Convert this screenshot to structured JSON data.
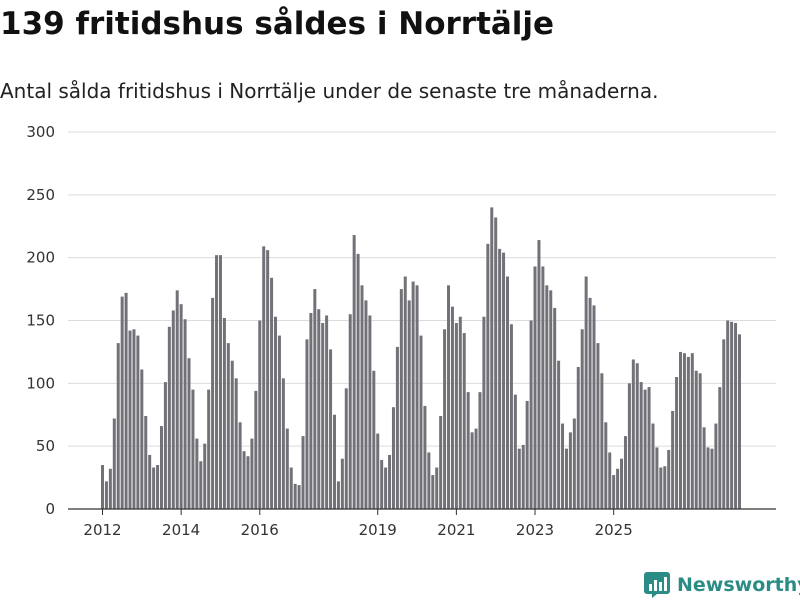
{
  "title": "139 fritidshus såldes i Norrtälje",
  "subtitle": "Antal sålda fritidshus i Norrtälje under de senaste tre månaderna.",
  "brand": {
    "name": "Newsworthy",
    "icon": "newsworthy-logo-icon"
  },
  "colors": {
    "bar": "#727178",
    "highlight": "#21988a",
    "grid": "#dcdcdc",
    "axis": "#333333",
    "brand": "#2a8c85"
  },
  "chart_data": {
    "type": "bar",
    "title": "139 fritidshus såldes i Norrtälje",
    "subtitle": "Antal sålda fritidshus i Norrtälje under de senaste tre månaderna.",
    "xlabel": "",
    "ylabel": "",
    "ylim": [
      0,
      300
    ],
    "yticks": [
      0,
      50,
      100,
      150,
      200,
      250,
      300
    ],
    "grid": true,
    "start": "2012-01",
    "xtick_labels": [
      {
        "label": "2012",
        "index": 0
      },
      {
        "label": "2014",
        "index": 20
      },
      {
        "label": "2016",
        "index": 40
      },
      {
        "label": "2019",
        "index": 70
      },
      {
        "label": "2021",
        "index": 90
      },
      {
        "label": "2023",
        "index": 110
      },
      {
        "label": "2025",
        "index": 130
      }
    ],
    "values": [
      35,
      22,
      32,
      72,
      132,
      169,
      172,
      142,
      143,
      138,
      111,
      74,
      43,
      33,
      35,
      66,
      101,
      145,
      158,
      174,
      163,
      151,
      120,
      95,
      56,
      38,
      52,
      95,
      168,
      202,
      202,
      152,
      132,
      118,
      104,
      69,
      46,
      42,
      56,
      94,
      150,
      209,
      206,
      184,
      153,
      138,
      104,
      64,
      33,
      20,
      19,
      58,
      135,
      156,
      175,
      159,
      148,
      154,
      127,
      75,
      22,
      40,
      96,
      155,
      218,
      203,
      178,
      166,
      154,
      110,
      60,
      39,
      33,
      43,
      81,
      129,
      175,
      185,
      166,
      181,
      178,
      138,
      82,
      45,
      27,
      33,
      74,
      143,
      178,
      161,
      148,
      153,
      140,
      93,
      61,
      64,
      93,
      153,
      211,
      240,
      232,
      207,
      204,
      185,
      147,
      91,
      48,
      51,
      86,
      150,
      193,
      214,
      193,
      178,
      174,
      160,
      118,
      68,
      48,
      61,
      72,
      113,
      143,
      185,
      168,
      162,
      132,
      108,
      69,
      45,
      27,
      32,
      40,
      58,
      100,
      119,
      116,
      101,
      95,
      97,
      68,
      49,
      33,
      34,
      47,
      78,
      105,
      125,
      124,
      121,
      124,
      110,
      108,
      65,
      49,
      48,
      68,
      97,
      135,
      150,
      149,
      148,
      139
    ],
    "highlight": {
      "value": 139,
      "label": "139",
      "index": 164
    }
  }
}
